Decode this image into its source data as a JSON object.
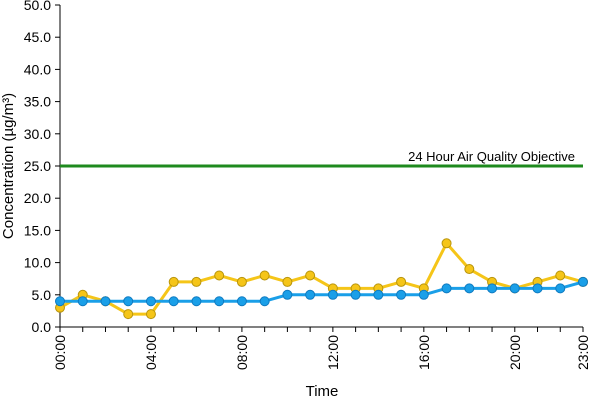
{
  "chart_data": {
    "type": "line",
    "xlabel": "Time",
    "ylabel": "Concentration (µg/m³)",
    "ylim": [
      0,
      50
    ],
    "yticks": [
      "0.0",
      "5.0",
      "10.0",
      "15.0",
      "20.0",
      "25.0",
      "30.0",
      "35.0",
      "40.0",
      "45.0",
      "50.0"
    ],
    "x": [
      "00:00",
      "01:00",
      "02:00",
      "03:00",
      "04:00",
      "05:00",
      "06:00",
      "07:00",
      "08:00",
      "09:00",
      "10:00",
      "11:00",
      "12:00",
      "13:00",
      "14:00",
      "15:00",
      "16:00",
      "17:00",
      "18:00",
      "19:00",
      "20:00",
      "21:00",
      "22:00",
      "23:00"
    ],
    "xticks": [
      "00:00",
      "04:00",
      "08:00",
      "12:00",
      "16:00",
      "20:00",
      "23:00"
    ],
    "grid": false,
    "series": [
      {
        "color": "#f5c518",
        "values": [
          3,
          5,
          4,
          2,
          2,
          7,
          7,
          8,
          7,
          8,
          7,
          8,
          6,
          6,
          6,
          7,
          6,
          13,
          9,
          7,
          6,
          7,
          8,
          7
        ]
      },
      {
        "color": "#1a9fe8",
        "values": [
          4,
          4,
          4,
          4,
          4,
          4,
          4,
          4,
          4,
          4,
          5,
          5,
          5,
          5,
          5,
          5,
          5,
          6,
          6,
          6,
          6,
          6,
          6,
          7
        ]
      }
    ],
    "objective": {
      "value": 25,
      "label": "24 Hour Air Quality Objective",
      "color": "#1e8a1e"
    }
  }
}
